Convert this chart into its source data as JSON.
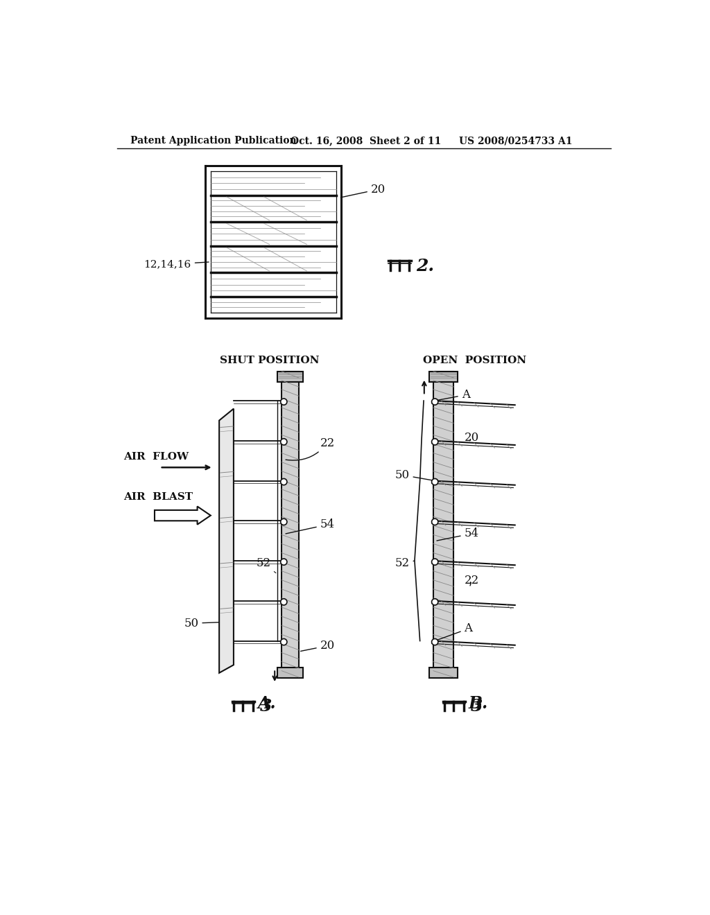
{
  "bg_color": "#ffffff",
  "title_line1": "Patent Application Publication",
  "title_line2": "Oct. 16, 2008  Sheet 2 of 11",
  "title_line3": "US 2008/0254733 A1",
  "label_20_fig2": "20",
  "label_12_14_16": "12,14,16",
  "shut_position": "SHUT POSITION",
  "open_position": "OPEN  POSITION",
  "air_flow": "AIR  FLOW",
  "air_blast": "AIR  BLAST",
  "label_22": "22",
  "label_54": "54",
  "label_52": "52",
  "label_50_left": "50",
  "label_20_left": "20",
  "label_A_top": "A",
  "label_20_right": "20",
  "label_50_right": "50",
  "label_54_right": "54",
  "label_52_right": "52",
  "label_22_right": "22",
  "label_A_bot": "A"
}
